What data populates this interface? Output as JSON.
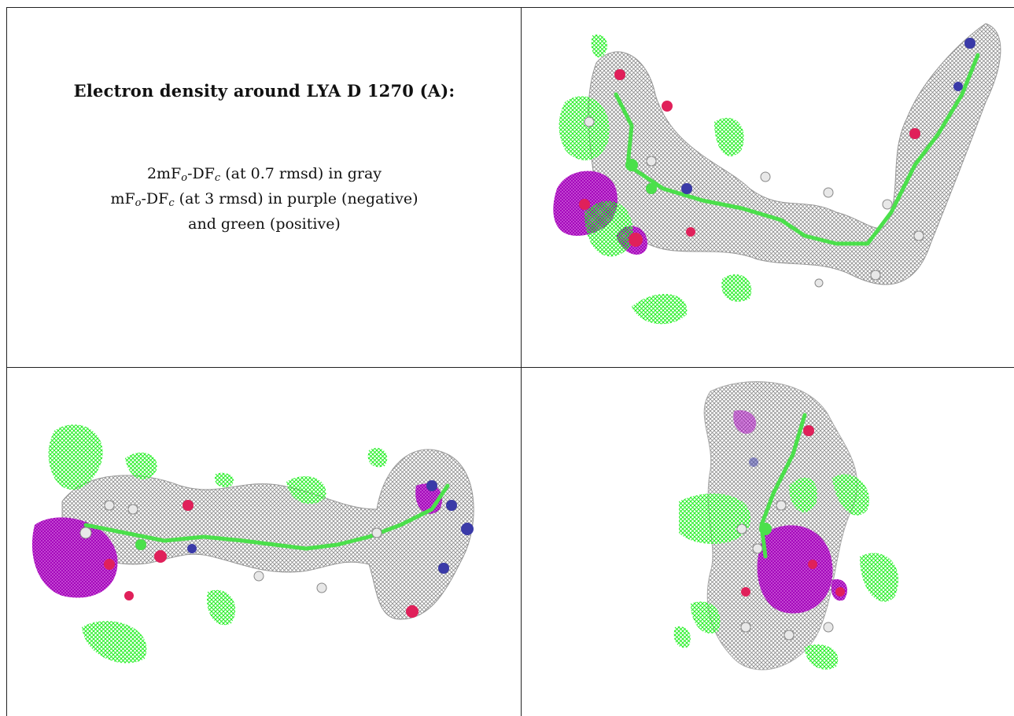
{
  "header": {
    "title": "Electron density around LYA D 1270 (A):"
  },
  "legend": {
    "line1": {
      "prefix": "2mF",
      "sub1": "o",
      "mid": "-DF",
      "sub2": "c",
      "suffix": " (at 0.7 rmsd) in gray"
    },
    "line2": {
      "prefix": "mF",
      "sub1": "o",
      "mid": "-DF",
      "sub2": "c",
      "suffix": " (at 3 rmsd) in purple (negative)"
    },
    "line3": "and green (positive)"
  },
  "colors": {
    "density_2fofc": "#8a8a8a",
    "density_negative": "#b000c8",
    "density_positive": "#22ee22",
    "carbon": "#4be04b",
    "oxygen": "#e0205a",
    "nitrogen": "#3a3aa8",
    "hydrogen": "#e8e8e8",
    "grid_line": "#222222"
  },
  "panels": [
    {
      "id": "view-top-right",
      "icon": "density-map-view-1"
    },
    {
      "id": "view-bottom-left",
      "icon": "density-map-view-2"
    },
    {
      "id": "view-bottom-right",
      "icon": "density-map-view-3"
    }
  ]
}
